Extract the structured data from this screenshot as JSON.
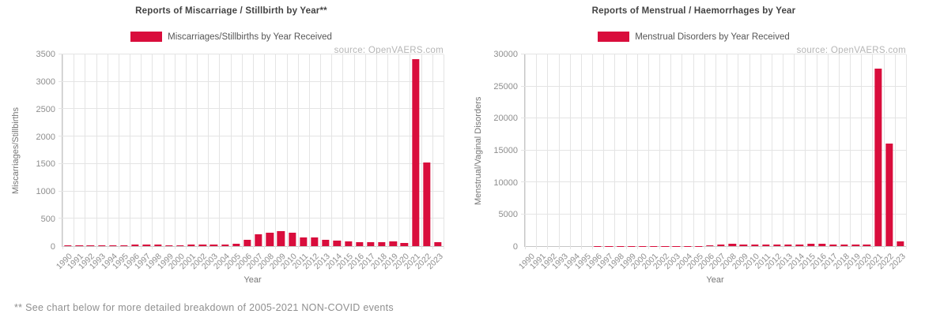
{
  "page": {
    "footnote": "** See chart below for more detailed breakdown of 2005-2021 NON-COVID events"
  },
  "colors": {
    "bar_red": "#D90D3C",
    "title_text": "#434343",
    "legend_text": "#565656",
    "tick_text": "#8E8E8E",
    "axis_title_text": "#757575",
    "grid_line": "#E4E4E4",
    "axis_spine": "#C6C6C6",
    "source_text": "#B5B5B5",
    "footnote_text": "#8F8F8F",
    "background": "#FFFFFF"
  },
  "chart_data": [
    {
      "type": "bar",
      "title": "Reports of Miscarriage / Stillbirth by Year**",
      "legend": "Miscarriages/Stillbirths by Year Received",
      "source": "source: OpenVAERS.com",
      "xlabel": "Year",
      "ylabel": "Miscarriages/Stillbirths",
      "ylim": [
        0,
        3500
      ],
      "ytick_step": 500,
      "grid": true,
      "legend_position": "top",
      "categories": [
        "1990",
        "1991",
        "1992",
        "1993",
        "1994",
        "1995",
        "1996",
        "1997",
        "1998",
        "1999",
        "2000",
        "2001",
        "2002",
        "2003",
        "2004",
        "2005",
        "2006",
        "2007",
        "2008",
        "2009",
        "2010",
        "2011",
        "2012",
        "2013",
        "2014",
        "2015",
        "2016",
        "2017",
        "2018",
        "2019",
        "2020",
        "2021",
        "2022",
        "2023"
      ],
      "values": [
        8,
        8,
        15,
        15,
        10,
        10,
        25,
        30,
        28,
        18,
        18,
        30,
        32,
        35,
        35,
        50,
        110,
        210,
        250,
        270,
        240,
        165,
        155,
        120,
        100,
        85,
        75,
        68,
        78,
        82,
        62,
        3415,
        1520,
        70
      ]
    },
    {
      "type": "bar",
      "title": "Reports of Menstrual / Haemorrhages by Year",
      "legend": "Menstrual Disorders by Year Received",
      "source": "source: OpenVAERS.com",
      "xlabel": "Year",
      "ylabel": "Menstrual/Vaginal Disorders",
      "ylim": [
        0,
        30000
      ],
      "ytick_step": 5000,
      "grid": true,
      "legend_position": "top",
      "categories": [
        "1990",
        "1991",
        "1992",
        "1993",
        "1994",
        "1995",
        "1996",
        "1997",
        "1998",
        "1999",
        "2000",
        "2001",
        "2002",
        "2003",
        "2004",
        "2005",
        "2006",
        "2007",
        "2008",
        "2009",
        "2010",
        "2011",
        "2012",
        "2013",
        "2014",
        "2015",
        "2016",
        "2017",
        "2018",
        "2019",
        "2020",
        "2021",
        "2022",
        "2023"
      ],
      "values": [
        5,
        5,
        8,
        8,
        8,
        8,
        12,
        12,
        12,
        15,
        40,
        25,
        25,
        25,
        35,
        60,
        150,
        300,
        340,
        300,
        290,
        290,
        250,
        290,
        250,
        340,
        330,
        250,
        250,
        250,
        290,
        27800,
        16100,
        700
      ]
    }
  ]
}
